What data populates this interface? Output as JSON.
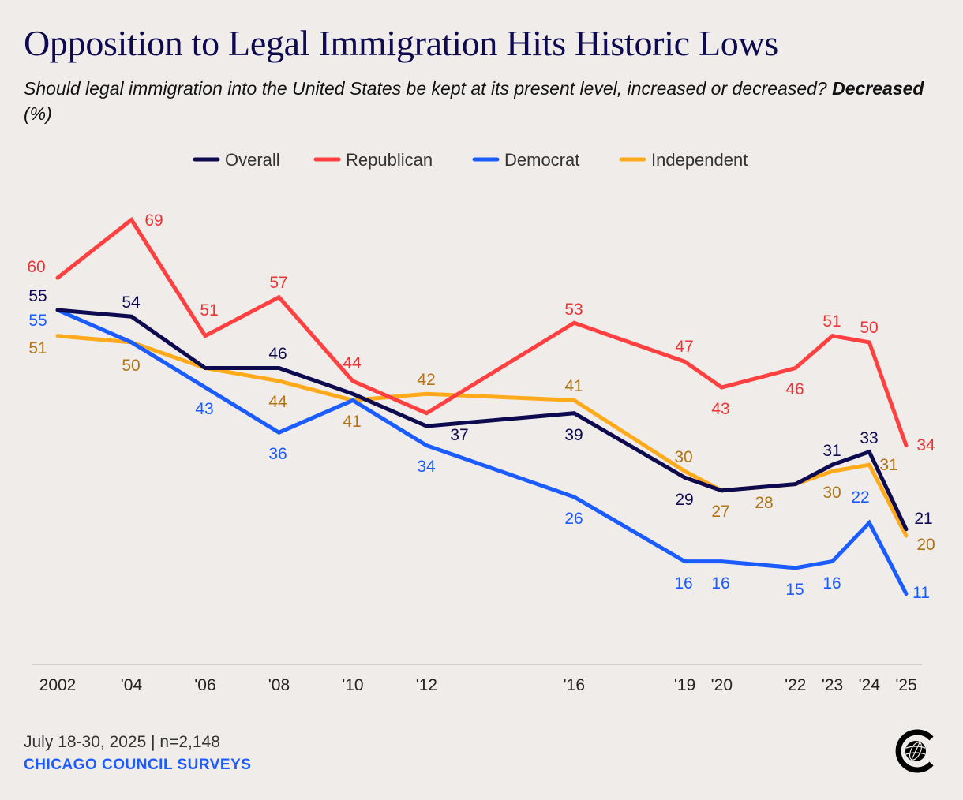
{
  "title": "Opposition to Legal Immigration Hits Historic Lows",
  "subtitle_prefix": "Should legal immigration into the United States be kept at its present level, increased or decreased? ",
  "subtitle_bold": "Decreased",
  "subtitle_suffix": " (%)",
  "footer": {
    "date_sample": "July 18-30, 2025 | n=2,148",
    "source": "CHICAGO COUNCIL SURVEYS",
    "logo_icon": "globe-c-logo-icon"
  },
  "chart_data": {
    "type": "line",
    "title": "Opposition to Legal Immigration Hits Historic Lows",
    "x": [
      2002,
      2004,
      2006,
      2008,
      2010,
      2012,
      2016,
      2019,
      2020,
      2022,
      2023,
      2024,
      2025
    ],
    "x_tick_labels": [
      "2002",
      "'04",
      "'06",
      "'08",
      "'10",
      "'12",
      "'16",
      "'19",
      "'20",
      "'22",
      "'23",
      "'24",
      "'25"
    ],
    "ylabel": "",
    "xlabel": "",
    "grid": false,
    "legend": "top-center",
    "series": [
      {
        "name": "Overall",
        "color": "#0d0a4f",
        "label_color": "#0d0a4f",
        "values": [
          55,
          54,
          46,
          46,
          42,
          37,
          39,
          29,
          27,
          28,
          31,
          33,
          21
        ]
      },
      {
        "name": "Republican",
        "color": "#ff4040",
        "label_color": "#ea3535",
        "values": [
          60,
          69,
          51,
          57,
          44,
          39,
          53,
          47,
          43,
          46,
          51,
          50,
          34
        ]
      },
      {
        "name": "Democrat",
        "color": "#1a5cff",
        "label_color": "#1a5cff",
        "values": [
          55,
          50,
          43,
          36,
          41,
          34,
          26,
          16,
          16,
          15,
          16,
          22,
          11
        ]
      },
      {
        "name": "Independent",
        "color": "#ffaa1a",
        "label_color": "#b07414",
        "values": [
          51,
          50,
          46,
          44,
          41,
          42,
          41,
          30,
          27,
          28,
          30,
          31,
          20
        ]
      }
    ]
  }
}
